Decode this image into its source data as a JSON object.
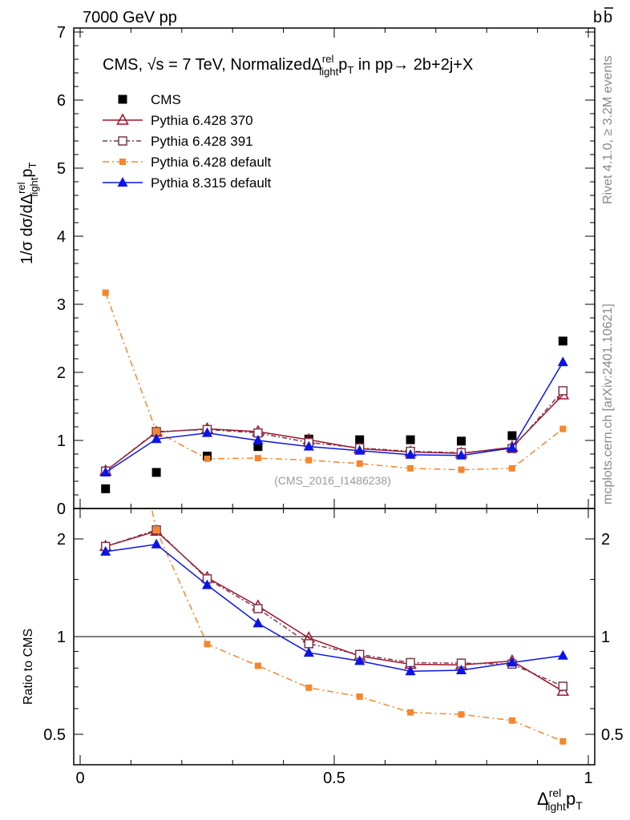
{
  "header": {
    "left": "7000 GeV pp",
    "right": "b",
    "right_bar": "b"
  },
  "side": {
    "rivet": "Rivet 4.1.0, ≥ 3.2M events",
    "mcplots": "mcplots.cern.ch [arXiv:2401.10621]"
  },
  "chart_data": [
    {
      "type": "scatter",
      "title": "CMS, √s = 7 TeV, NormalizedΔrel light pT in pp→ 2b+2j+X",
      "title_parts": {
        "a": "CMS, ",
        "sqrt": "√",
        "b": "s = 7 TeV, Normalized",
        "delta": "Δ",
        "sup": "rel",
        "sub": "light",
        "pt": "p",
        "t": "T",
        "c": " in pp→  2b+2j+X"
      },
      "ylabel": "1/σ dσ/dΔrel light pT",
      "ylabel_parts": {
        "a": "1/σ dσ/dΔ",
        "sup": "rel",
        "sub": "light",
        "p": "p",
        "t": "T"
      },
      "xlabel_parts": {
        "delta": "Δ",
        "sup": "rel",
        "sub": "light",
        "p": "p",
        "t": "T"
      },
      "watermark": "(CMS_2016_I1486238)",
      "xlim": [
        0,
        1
      ],
      "ylim": [
        0,
        7
      ],
      "xticks": [
        "0",
        "0.5",
        "1"
      ],
      "yticks": [
        "0",
        "1",
        "2",
        "3",
        "4",
        "5",
        "6",
        "7"
      ],
      "x": [
        0.05,
        0.15,
        0.25,
        0.35,
        0.45,
        0.55,
        0.65,
        0.75,
        0.85,
        0.95
      ],
      "series": [
        {
          "name": "CMS",
          "color": "#000000",
          "marker": "square",
          "values": [
            0.29,
            0.53,
            0.77,
            0.91,
            1.02,
            1.01,
            1.01,
            0.99,
            1.07,
            2.46
          ]
        },
        {
          "name": "Pythia 6.428 370",
          "color": "#a0112a",
          "marker": "open-triangle",
          "dash": "",
          "values": [
            0.55,
            1.12,
            1.17,
            1.13,
            1.01,
            0.88,
            0.83,
            0.81,
            0.9,
            1.67
          ]
        },
        {
          "name": "Pythia 6.428 391",
          "color": "#7a3848",
          "marker": "open-square",
          "dash": "6,3,2,3",
          "values": [
            0.55,
            1.13,
            1.16,
            1.11,
            0.97,
            0.89,
            0.84,
            0.82,
            0.88,
            1.73
          ]
        },
        {
          "name": "Pythia 6.428 default",
          "color": "#f5862c",
          "marker": "small-square",
          "dash": "8,4,2,4",
          "values": [
            3.17,
            1.13,
            0.73,
            0.74,
            0.71,
            0.66,
            0.59,
            0.57,
            0.59,
            1.17
          ]
        },
        {
          "name": "Pythia 8.315 default",
          "color": "#0a14e6",
          "marker": "triangle",
          "dash": "",
          "values": [
            0.53,
            1.02,
            1.11,
            1.0,
            0.91,
            0.85,
            0.79,
            0.78,
            0.89,
            2.15
          ]
        }
      ]
    },
    {
      "type": "scatter",
      "ylabel": "Ratio to CMS",
      "scale": "log",
      "ylim": [
        0.4,
        2.48
      ],
      "yticks": [
        "0.5",
        "1",
        "2"
      ],
      "reference": 1
    }
  ]
}
